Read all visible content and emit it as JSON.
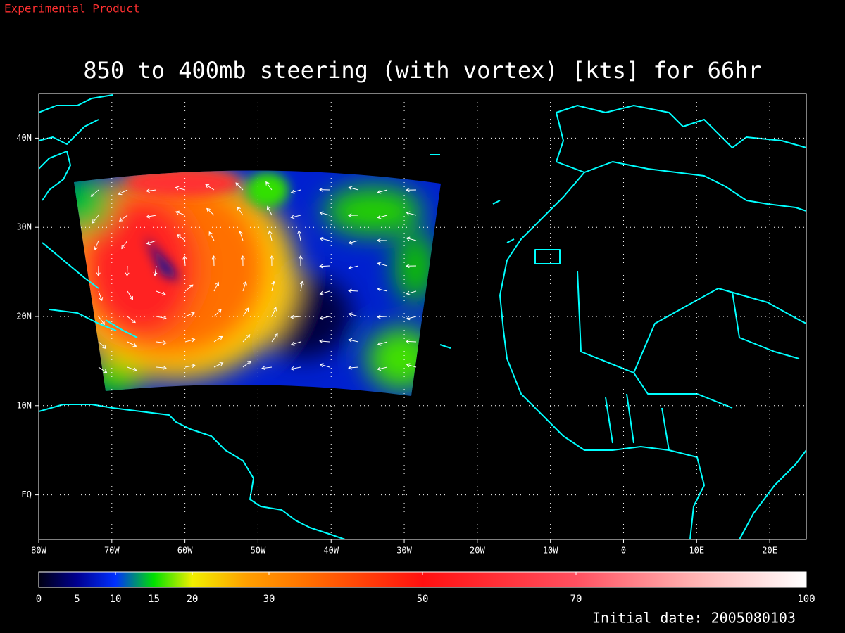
{
  "chart_data": {
    "type": "map",
    "watermark": "Experimental Product",
    "title": "850 to 400mb steering (with vortex) [kts] for 66hr",
    "footer": "Initial date: 2005080103",
    "xlim": [
      -80,
      25
    ],
    "ylim": [
      -5,
      45
    ],
    "xticks": [
      {
        "value": -80,
        "label": "80W"
      },
      {
        "value": -70,
        "label": "70W"
      },
      {
        "value": -60,
        "label": "60W"
      },
      {
        "value": -50,
        "label": "50W"
      },
      {
        "value": -40,
        "label": "40W"
      },
      {
        "value": -30,
        "label": "30W"
      },
      {
        "value": -20,
        "label": "20W"
      },
      {
        "value": -10,
        "label": "10W"
      },
      0,
      {
        "value": 10,
        "label": "10E"
      },
      {
        "value": 20,
        "label": "20E"
      }
    ],
    "yticks": [
      {
        "value": 0,
        "label": "EQ"
      },
      {
        "value": 10,
        "label": "10N"
      },
      {
        "value": 20,
        "label": "20N"
      },
      {
        "value": 30,
        "label": "30N"
      },
      {
        "value": 40,
        "label": "40N"
      }
    ],
    "grid": true,
    "colorbar": {
      "lim": [
        0,
        100
      ],
      "ticks": [
        0,
        5,
        10,
        15,
        20,
        30,
        50,
        70,
        100
      ]
    }
  }
}
